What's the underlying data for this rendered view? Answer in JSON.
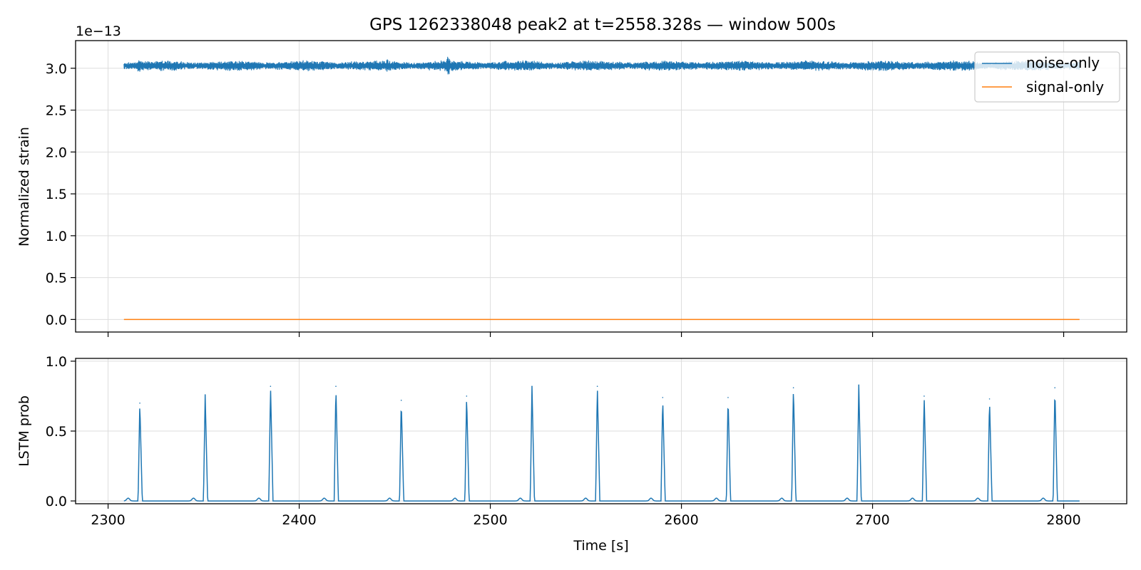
{
  "figure": {
    "title": "GPS 1262338048 peak2 at t=2558.328s — window 500s"
  },
  "chart_data": [
    {
      "type": "line",
      "title": "GPS 1262338048 peak2 at t=2558.328s — window 500s",
      "ylabel": "Normalized strain",
      "xlabel": "",
      "offset_text": "1e−13",
      "xlim": [
        2283,
        2833
      ],
      "ylim": [
        -0.15,
        3.33
      ],
      "x_ticks": [
        2300,
        2400,
        2500,
        2600,
        2700,
        2800
      ],
      "y_ticks": [
        0.0,
        0.5,
        1.0,
        1.5,
        2.0,
        2.5,
        3.0
      ],
      "y_tick_labels": [
        "0.0",
        "0.5",
        "1.0",
        "1.5",
        "2.0",
        "2.5",
        "3.0"
      ],
      "grid": true,
      "legend": "top-right",
      "series": [
        {
          "name": "noise-only",
          "color": "#1f77b4",
          "x_range": [
            2308.3,
            2808.3
          ],
          "center": 3.03,
          "amplitude": 0.05,
          "notable_peaks": [
            [
              2316,
              0.1
            ],
            [
              2446,
              0.1
            ],
            [
              2478,
              0.14
            ]
          ]
        },
        {
          "name": "signal-only",
          "color": "#ff7f0e",
          "x": [
            2308.3,
            2808.3
          ],
          "values": [
            0.0,
            0.0
          ]
        }
      ]
    },
    {
      "type": "line",
      "ylabel": "LSTM prob",
      "xlabel": "Time [s]",
      "xlim": [
        2283,
        2833
      ],
      "ylim": [
        -0.02,
        1.02
      ],
      "x_ticks": [
        2300,
        2400,
        2500,
        2600,
        2700,
        2800
      ],
      "x_tick_labels": [
        "2300",
        "2400",
        "2500",
        "2600",
        "2700",
        "2800"
      ],
      "y_ticks": [
        0.0,
        0.5,
        1.0
      ],
      "y_tick_labels": [
        "0.0",
        "0.5",
        "1.0"
      ],
      "grid": true,
      "series": [
        {
          "color": "#1f77b4",
          "x_range": [
            2308.3,
            2808.3
          ],
          "peaks": [
            [
              2316.6,
              0.7
            ],
            [
              2350.8,
              0.76
            ],
            [
              2385.0,
              0.82
            ],
            [
              2419.2,
              0.82
            ],
            [
              2453.4,
              0.72
            ],
            [
              2487.6,
              0.75
            ],
            [
              2521.8,
              0.82
            ],
            [
              2556.0,
              0.82
            ],
            [
              2590.2,
              0.74
            ],
            [
              2624.4,
              0.74
            ],
            [
              2658.6,
              0.81
            ],
            [
              2692.8,
              0.83
            ],
            [
              2727.0,
              0.75
            ],
            [
              2761.2,
              0.73
            ],
            [
              2795.4,
              0.81
            ]
          ],
          "bumps": [
            [
              2310.5,
              0.02
            ],
            [
              2344.7,
              0.02
            ],
            [
              2378.9,
              0.02
            ],
            [
              2413.1,
              0.02
            ],
            [
              2447.3,
              0.02
            ],
            [
              2481.5,
              0.02
            ],
            [
              2515.7,
              0.02
            ],
            [
              2549.9,
              0.02
            ],
            [
              2584.1,
              0.02
            ],
            [
              2618.3,
              0.02
            ],
            [
              2652.5,
              0.02
            ],
            [
              2686.7,
              0.02
            ],
            [
              2720.9,
              0.02
            ],
            [
              2755.1,
              0.02
            ],
            [
              2789.3,
              0.02
            ]
          ]
        }
      ]
    }
  ]
}
